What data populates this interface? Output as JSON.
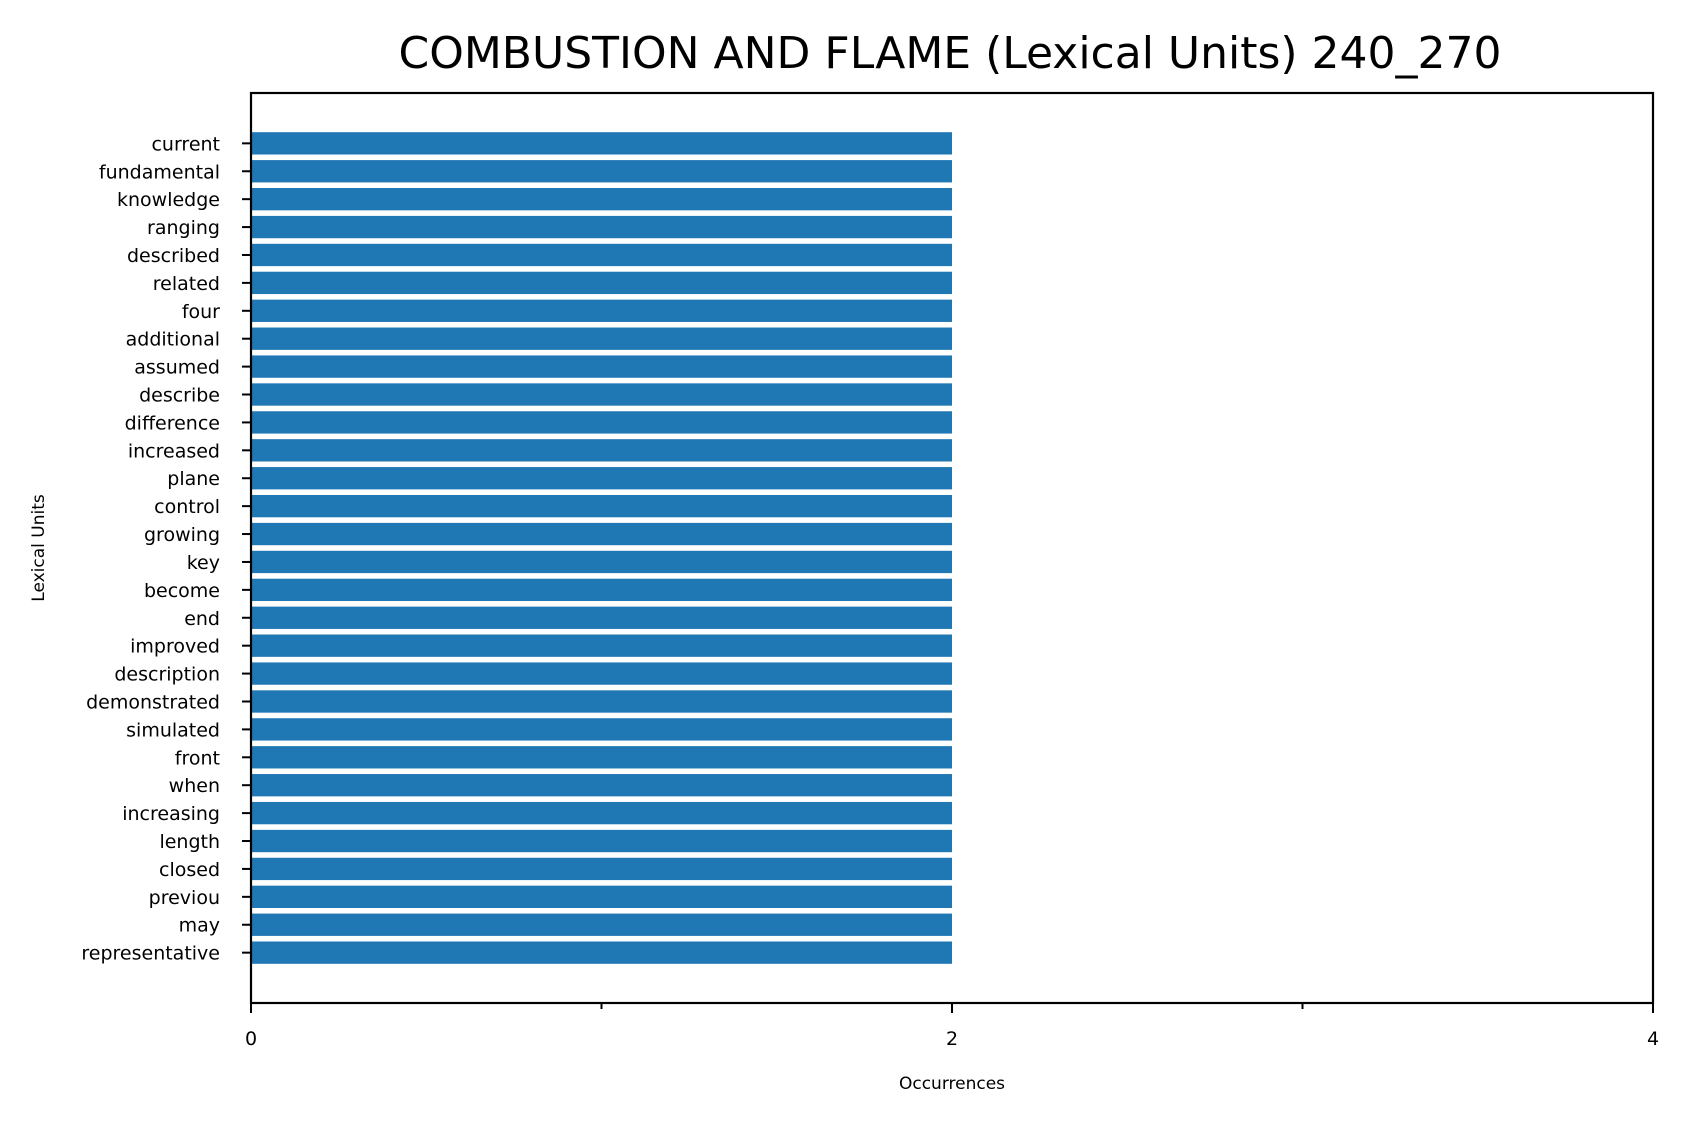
{
  "chart_data": {
    "type": "bar",
    "orientation": "horizontal",
    "title": "COMBUSTION AND FLAME (Lexical Units) 240_270",
    "xlabel": "Occurrences",
    "ylabel": "Lexical Units",
    "categories": [
      "current",
      "fundamental",
      "knowledge",
      "ranging",
      "described",
      "related",
      "four",
      "additional",
      "assumed",
      "describe",
      "difference",
      "increased",
      "plane",
      "control",
      "growing",
      "key",
      "become",
      "end",
      "improved",
      "description",
      "demonstrated",
      "simulated",
      "front",
      "when",
      "increasing",
      "length",
      "closed",
      "previou",
      "may",
      "representative"
    ],
    "values": [
      2,
      2,
      2,
      2,
      2,
      2,
      2,
      2,
      2,
      2,
      2,
      2,
      2,
      2,
      2,
      2,
      2,
      2,
      2,
      2,
      2,
      2,
      2,
      2,
      2,
      2,
      2,
      2,
      2,
      2
    ],
    "xlim": [
      0,
      4
    ],
    "xticks": [
      "0",
      "2",
      "4"
    ],
    "bar_color": "#1f77b4",
    "grid": false,
    "legend": "none"
  }
}
